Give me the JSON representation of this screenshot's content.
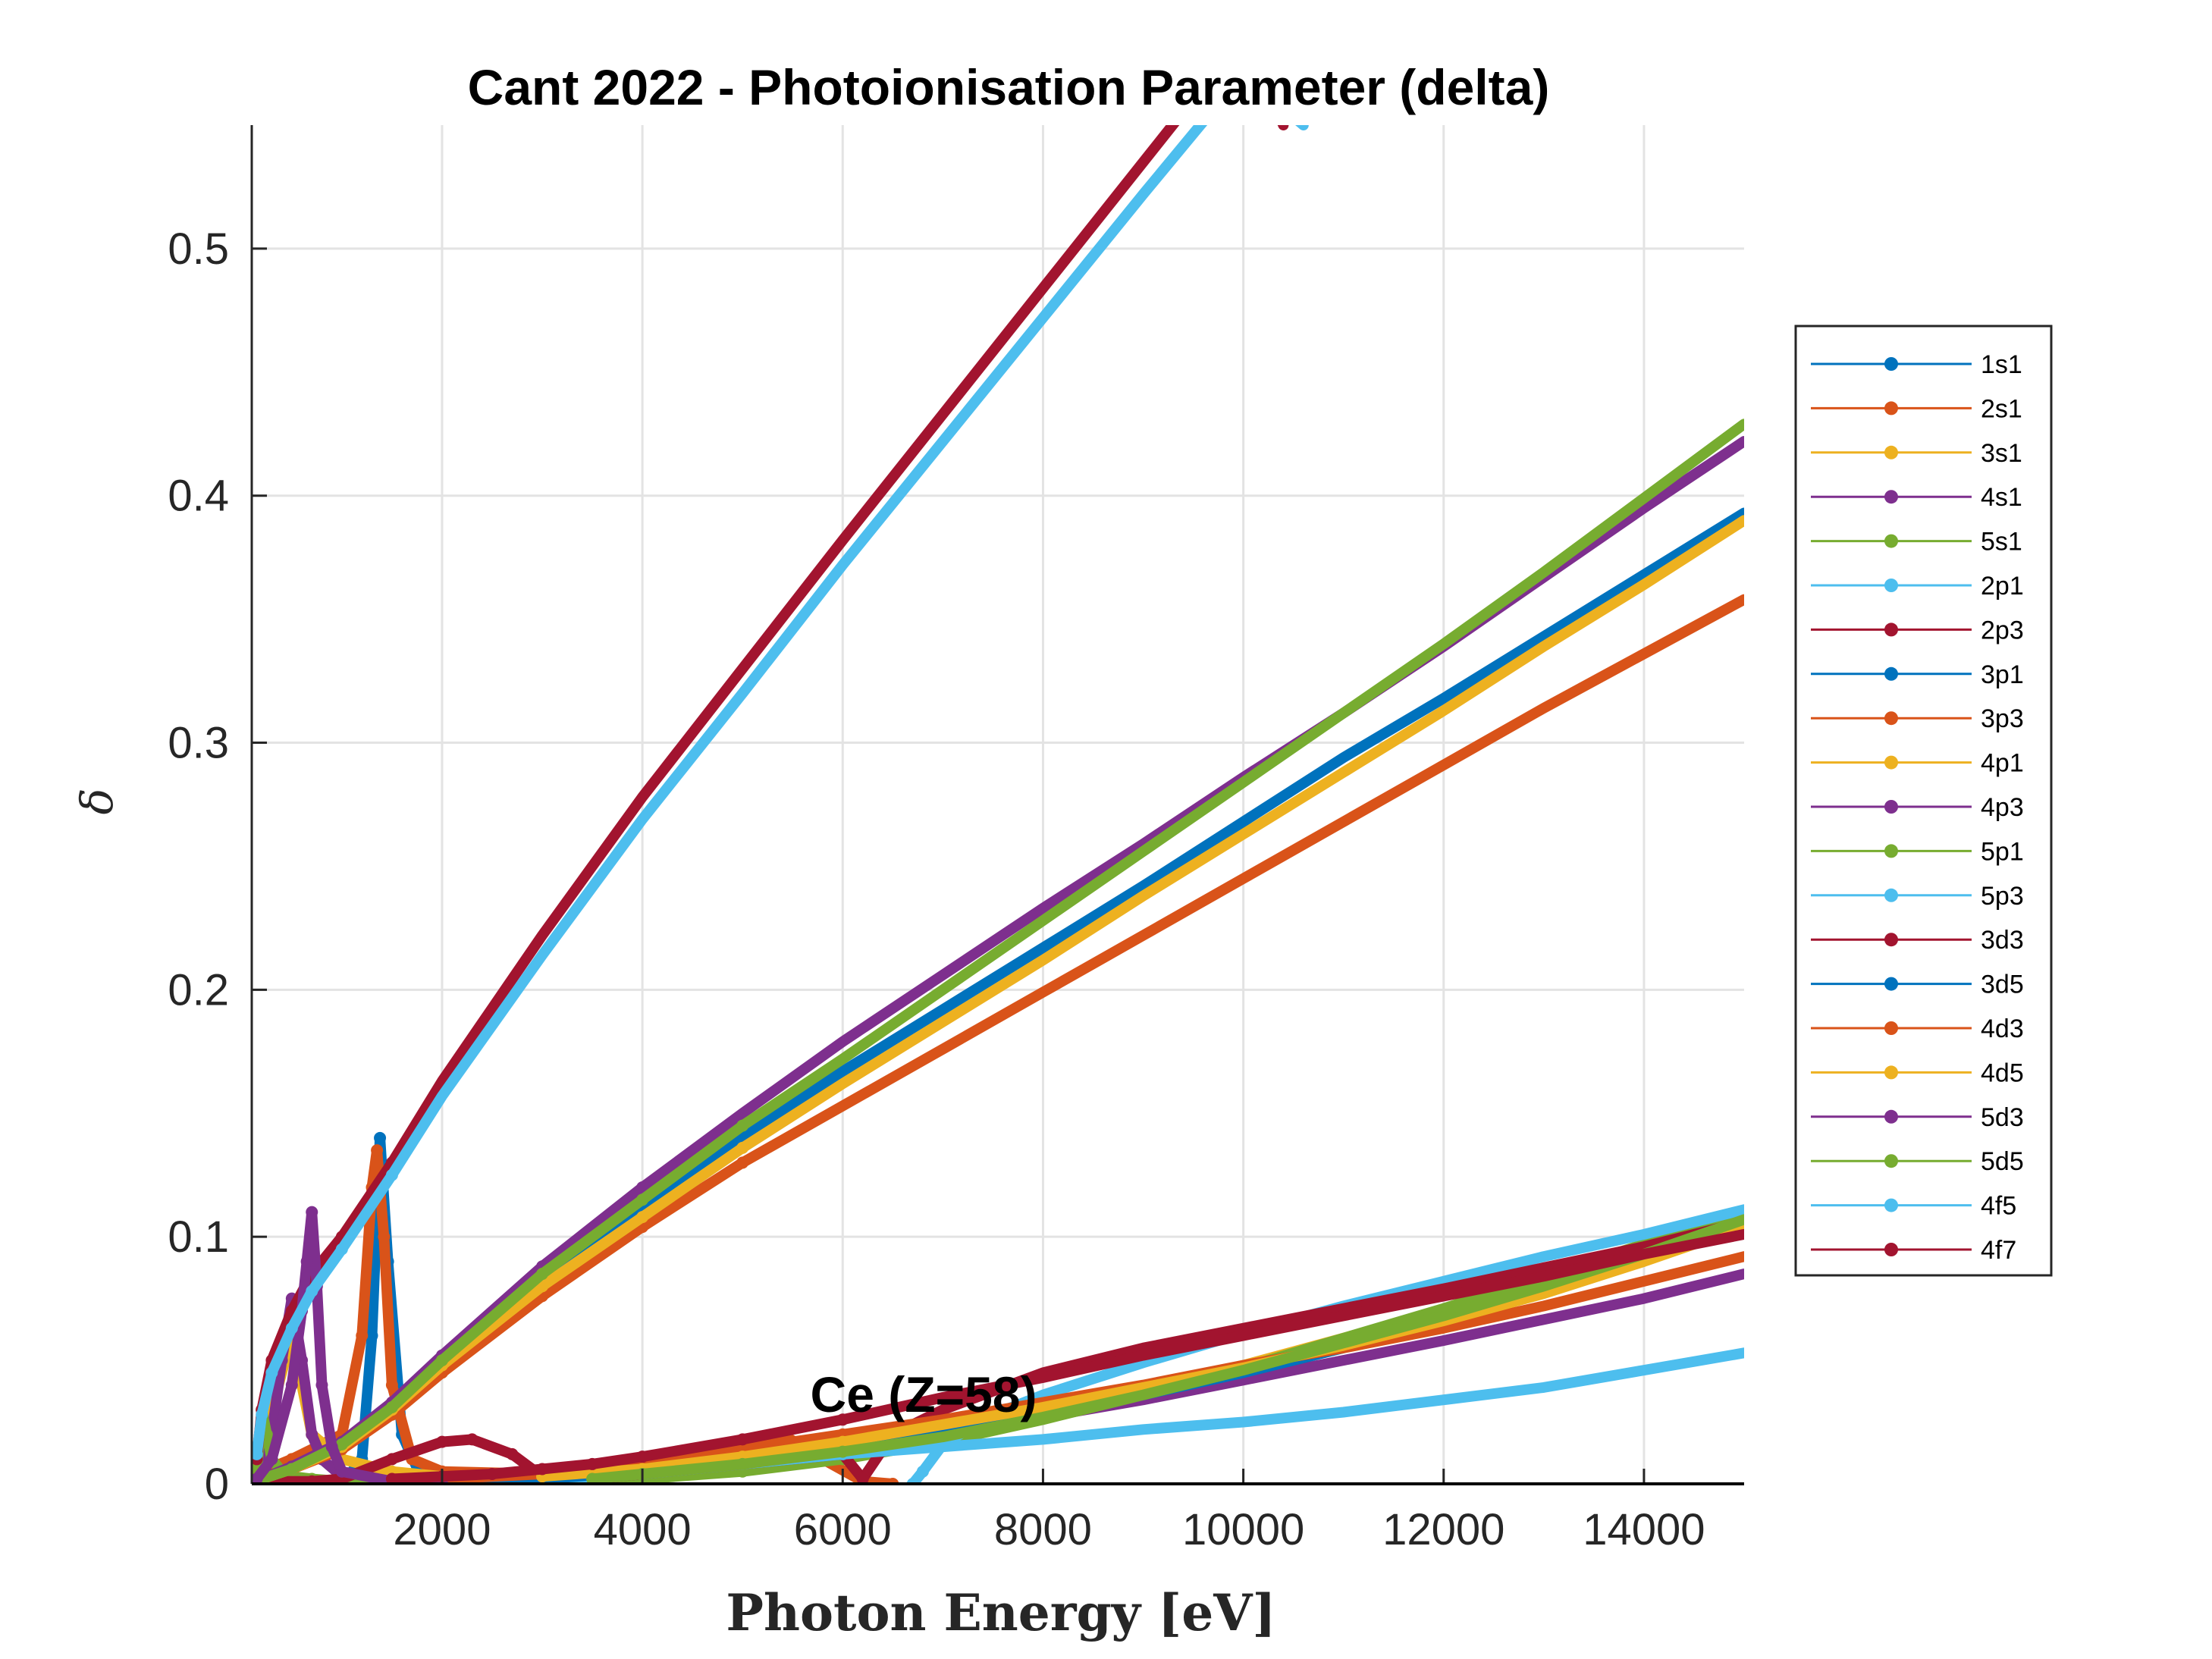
{
  "chart_data": {
    "type": "line",
    "title": "Cant 2022 - Photoionisation Parameter (delta)",
    "xlabel": "Photon Energy [eV]",
    "ylabel": "δ",
    "annotation": "Ce (Z=58)",
    "xlim": [
      100,
      15000
    ],
    "ylim": [
      0,
      0.55
    ],
    "xticks": [
      2000,
      4000,
      6000,
      8000,
      10000,
      12000,
      14000
    ],
    "yticks": [
      0,
      0.1,
      0.2,
      0.3,
      0.4,
      0.5
    ],
    "grid": true,
    "legend_position": "outside-right",
    "series": [
      {
        "name": "1s1",
        "color": "#0072BD",
        "x": [
          1000,
          1200,
          1300,
          1380,
          1460,
          1600,
          1800,
          2000,
          2500,
          3000
        ],
        "y": [
          0,
          0.01,
          0.06,
          0.14,
          0.09,
          0.02,
          0.002,
          0,
          0.001,
          0
        ]
      },
      {
        "name": "2s1",
        "color": "#D95319",
        "x": [
          200,
          500,
          1000,
          1200,
          1300,
          1350,
          1420,
          1500,
          1700,
          2000,
          3000,
          4000,
          5000,
          5400,
          5800,
          6200,
          6500
        ],
        "y": [
          0.005,
          0.01,
          0.02,
          0.06,
          0.12,
          0.135,
          0.1,
          0.04,
          0.01,
          0.005,
          0.004,
          0.008,
          0.015,
          0.02,
          0.01,
          0.001,
          0
        ]
      },
      {
        "name": "3s1",
        "color": "#EDB120",
        "x": [
          150,
          300,
          500,
          700,
          1000,
          1500,
          2000,
          3000,
          4000,
          5000,
          6000,
          7000,
          8000,
          9000,
          10000,
          12000,
          14000,
          15000
        ],
        "y": [
          0.005,
          0.03,
          0.06,
          0.02,
          0.01,
          0.005,
          0.003,
          0.002,
          0.004,
          0.008,
          0.012,
          0.02,
          0.028,
          0.038,
          0.048,
          0.07,
          0.093,
          0.104
        ]
      },
      {
        "name": "4s1",
        "color": "#7E2F8E",
        "x": [
          150,
          300,
          400,
          500,
          600,
          700,
          800,
          1000,
          1500,
          2000,
          3000,
          4000,
          5000,
          6000,
          7000,
          8000,
          9000,
          10000,
          12000,
          14000,
          15000
        ],
        "y": [
          0.005,
          0.02,
          0.05,
          0.075,
          0.05,
          0.02,
          0.01,
          0.003,
          0.001,
          0,
          0.002,
          0.005,
          0.009,
          0.014,
          0.02,
          0.027,
          0.034,
          0.042,
          0.058,
          0.075,
          0.085
        ]
      },
      {
        "name": "5s1",
        "color": "#77AC30",
        "x": [
          150,
          200,
          250,
          300,
          400,
          500,
          700,
          1000,
          2000,
          3000,
          4000,
          5000,
          6000,
          7000,
          8000,
          9000,
          10000,
          11000,
          12000,
          13000,
          14000,
          15000
        ],
        "y": [
          0.005,
          0.03,
          0.02,
          0.01,
          0.005,
          0.003,
          0.002,
          0.001,
          0.001,
          0.001,
          0.002,
          0.005,
          0.01,
          0.017,
          0.026,
          0.036,
          0.047,
          0.059,
          0.071,
          0.084,
          0.097,
          0.11
        ]
      },
      {
        "name": "2p1",
        "color": "#4DBEEE",
        "x": [
          6700,
          6800,
          7000,
          7500,
          8000,
          9000,
          10000,
          11000,
          12000,
          13000,
          14000,
          15000
        ],
        "y": [
          0,
          0.005,
          0.016,
          0.028,
          0.036,
          0.049,
          0.061,
          0.072,
          0.082,
          0.092,
          0.101,
          0.111
        ]
      },
      {
        "name": "2p3",
        "color": "#A2142F",
        "x": [
          150,
          200,
          400,
          700,
          1000,
          1500,
          2000,
          2300,
          2700,
          3000,
          3500,
          4000,
          5000,
          6000,
          6200,
          6500,
          7000,
          8000,
          9000,
          10000,
          12000,
          14000,
          15000
        ],
        "y": [
          0.002,
          0.002,
          0.001,
          0.001,
          0.002,
          0.01,
          0.017,
          0.018,
          0.012,
          0.003,
          0.002,
          0.004,
          0.008,
          0.012,
          0.002,
          0.02,
          0.03,
          0.045,
          0.055,
          0.063,
          0.079,
          0.096,
          0.106
        ]
      },
      {
        "name": "3p1",
        "color": "#0072BD",
        "x": [
          200,
          500,
          1000,
          1500,
          2000,
          3000,
          4000,
          5000,
          6000,
          7000,
          8000,
          9000,
          10000,
          11000,
          12000,
          13000,
          14000,
          15000
        ],
        "y": [
          0.002,
          0.006,
          0.015,
          0.03,
          0.048,
          0.082,
          0.112,
          0.14,
          0.167,
          0.192,
          0.217,
          0.242,
          0.268,
          0.294,
          0.318,
          0.343,
          0.368,
          0.393
        ]
      },
      {
        "name": "3p3",
        "color": "#D95319",
        "x": [
          200,
          500,
          1000,
          1500,
          2000,
          3000,
          4000,
          5000,
          6000,
          7000,
          8000,
          9000,
          10000,
          11000,
          12000,
          13000,
          14000,
          15000
        ],
        "y": [
          0.002,
          0.006,
          0.014,
          0.028,
          0.045,
          0.076,
          0.104,
          0.13,
          0.153,
          0.176,
          0.199,
          0.222,
          0.245,
          0.268,
          0.291,
          0.314,
          0.336,
          0.358
        ]
      },
      {
        "name": "4p1",
        "color": "#EDB120",
        "x": [
          200,
          500,
          1000,
          1500,
          2000,
          3000,
          4000,
          5000,
          6000,
          7000,
          8000,
          9000,
          10000,
          11000,
          12000,
          13000,
          14000,
          15000
        ],
        "y": [
          0.002,
          0.006,
          0.015,
          0.03,
          0.048,
          0.08,
          0.108,
          0.136,
          0.162,
          0.187,
          0.212,
          0.238,
          0.263,
          0.288,
          0.313,
          0.339,
          0.364,
          0.39
        ]
      },
      {
        "name": "4p3",
        "color": "#7E2F8E",
        "x": [
          200,
          500,
          1000,
          1500,
          2000,
          3000,
          4000,
          5000,
          6000,
          7000,
          8000,
          9000,
          10000,
          11000,
          12000,
          13000,
          14000,
          15000
        ],
        "y": [
          0.002,
          0.007,
          0.017,
          0.033,
          0.052,
          0.088,
          0.12,
          0.15,
          0.179,
          0.206,
          0.233,
          0.259,
          0.286,
          0.312,
          0.339,
          0.367,
          0.395,
          0.422
        ]
      },
      {
        "name": "5p1",
        "color": "#77AC30",
        "x": [
          200,
          500,
          1000,
          1500,
          2000,
          3000,
          4000,
          5000,
          6000,
          7000,
          8000,
          9000,
          10000,
          11000,
          12000,
          13000,
          14000,
          15000
        ],
        "y": [
          0.002,
          0.006,
          0.016,
          0.031,
          0.05,
          0.085,
          0.115,
          0.145,
          0.172,
          0.2,
          0.228,
          0.256,
          0.284,
          0.312,
          0.34,
          0.369,
          0.399,
          0.429
        ]
      },
      {
        "name": "5p3",
        "color": "#4DBEEE",
        "x": [
          3000,
          4000,
          5000,
          6000,
          7000,
          8000,
          9000,
          10000,
          11000,
          12000,
          13000,
          14000,
          15000
        ],
        "y": [
          0.001,
          0.004,
          0.008,
          0.012,
          0.015,
          0.018,
          0.022,
          0.025,
          0.029,
          0.034,
          0.039,
          0.046,
          0.053
        ]
      },
      {
        "name": "3d3",
        "color": "#A2142F",
        "x": [
          150,
          200,
          300,
          500,
          700,
          1000,
          1500,
          2000,
          3000,
          4000,
          5000,
          6000,
          7000,
          8000,
          9000,
          10000,
          10400
        ],
        "y": [
          0.01,
          0.03,
          0.05,
          0.07,
          0.085,
          0.1,
          0.13,
          0.163,
          0.222,
          0.278,
          0.33,
          0.382,
          0.433,
          0.484,
          0.535,
          0.586,
          0.55
        ]
      },
      {
        "name": "3d5",
        "color": "#0072BD",
        "x": [
          2000,
          2500,
          3000,
          4000,
          5000,
          6000,
          7000,
          8000,
          9000,
          10000,
          11000,
          12000,
          13000,
          14000,
          15000
        ],
        "y": [
          0.001,
          0.001,
          0.002,
          0.005,
          0.009,
          0.014,
          0.021,
          0.028,
          0.036,
          0.045,
          0.055,
          0.066,
          0.078,
          0.091,
          0.105
        ]
      },
      {
        "name": "4d3",
        "color": "#D95319",
        "x": [
          2000,
          3000,
          4000,
          5000,
          6000,
          7000,
          8000,
          9000,
          10000,
          11000,
          12000,
          13000,
          14000,
          15000
        ],
        "y": [
          0.002,
          0.004,
          0.008,
          0.014,
          0.02,
          0.026,
          0.033,
          0.04,
          0.048,
          0.055,
          0.063,
          0.072,
          0.082,
          0.092
        ]
      },
      {
        "name": "4d5",
        "color": "#EDB120",
        "x": [
          3000,
          4000,
          5000,
          6000,
          7000,
          8000,
          9000,
          10000,
          11000,
          12000,
          13000,
          14000,
          15000
        ],
        "y": [
          0.003,
          0.006,
          0.011,
          0.017,
          0.024,
          0.031,
          0.039,
          0.047,
          0.056,
          0.066,
          0.077,
          0.09,
          0.104
        ]
      },
      {
        "name": "5d3",
        "color": "#7E2F8E",
        "x": [
          150,
          300,
          500,
          600,
          650,
          700,
          750,
          800,
          900,
          1000,
          1500,
          2000
        ],
        "y": [
          0.002,
          0.01,
          0.04,
          0.07,
          0.09,
          0.11,
          0.08,
          0.04,
          0.015,
          0.005,
          0.001,
          0
        ]
      },
      {
        "name": "5d5",
        "color": "#77AC30",
        "x": [
          3500,
          4000,
          5000,
          6000,
          7000,
          8000,
          9000,
          10000,
          11000,
          12000,
          13000,
          14000,
          15000
        ],
        "y": [
          0.002,
          0.004,
          0.008,
          0.013,
          0.019,
          0.027,
          0.036,
          0.046,
          0.057,
          0.068,
          0.08,
          0.093,
          0.107
        ]
      },
      {
        "name": "4f5",
        "color": "#4DBEEE",
        "x": [
          150,
          200,
          300,
          500,
          700,
          1000,
          1500,
          2000,
          3000,
          4000,
          5000,
          6000,
          7000,
          8000,
          9000,
          10000,
          10600
        ],
        "y": [
          0.012,
          0.028,
          0.045,
          0.063,
          0.078,
          0.095,
          0.125,
          0.157,
          0.214,
          0.269,
          0.32,
          0.372,
          0.422,
          0.472,
          0.522,
          0.571,
          0.55
        ]
      },
      {
        "name": "4f7",
        "color": "#A2142F",
        "x": [
          1500,
          2000,
          2500,
          3000,
          3500,
          4000,
          5000,
          6000,
          7000,
          8000,
          9000,
          10000,
          11000,
          12000,
          13000,
          14000,
          15000
        ],
        "y": [
          0.002,
          0.003,
          0.004,
          0.006,
          0.008,
          0.011,
          0.018,
          0.026,
          0.035,
          0.043,
          0.052,
          0.06,
          0.068,
          0.076,
          0.084,
          0.093,
          0.101
        ]
      }
    ]
  }
}
